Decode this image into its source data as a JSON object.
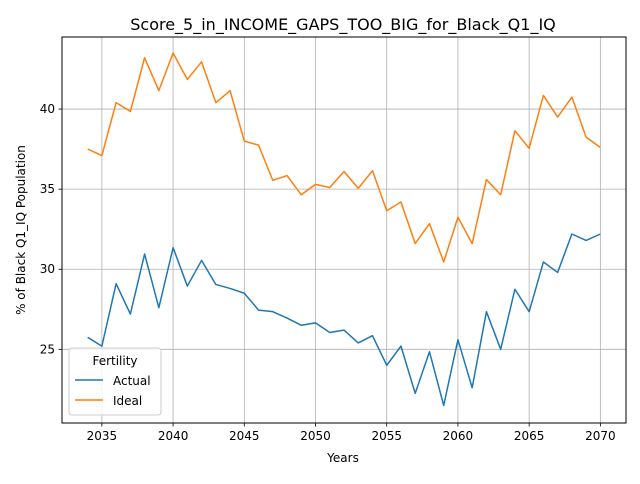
{
  "chart_data": {
    "type": "line",
    "title": "Score_5_in_INCOME_GAPS_TOO_BIG_for_Black_Q1_IQ",
    "xlabel": "Years",
    "ylabel": "% of Black Q1_IQ Population",
    "xlim": [
      2032.2,
      2071.8
    ],
    "ylim": [
      20.4,
      44.5
    ],
    "xticks": [
      2035,
      2040,
      2045,
      2050,
      2055,
      2060,
      2065,
      2070
    ],
    "yticks": [
      25,
      30,
      35,
      40
    ],
    "grid": true,
    "legend": {
      "title": "Fertility",
      "position": "lower-left"
    },
    "x": [
      2034,
      2035,
      2036,
      2037,
      2038,
      2039,
      2040,
      2041,
      2042,
      2043,
      2044,
      2045,
      2046,
      2047,
      2048,
      2049,
      2050,
      2051,
      2052,
      2053,
      2054,
      2055,
      2056,
      2057,
      2058,
      2059,
      2060,
      2061,
      2062,
      2063,
      2064,
      2065,
      2066,
      2067,
      2068,
      2069,
      2070
    ],
    "series": [
      {
        "name": "Actual",
        "color": "#1f77b4",
        "values": [
          25.75,
          25.2,
          29.1,
          27.2,
          30.95,
          27.6,
          31.35,
          28.95,
          30.55,
          29.05,
          28.8,
          28.5,
          27.45,
          27.35,
          26.95,
          26.5,
          26.65,
          26.05,
          26.2,
          25.4,
          25.85,
          24.0,
          25.2,
          22.25,
          24.85,
          21.5,
          25.6,
          22.6,
          27.35,
          25.0,
          28.75,
          27.35,
          30.45,
          29.8,
          32.2,
          31.8,
          32.2
        ]
      },
      {
        "name": "Ideal",
        "color": "#ff7f0e",
        "values": [
          37.5,
          37.1,
          40.4,
          39.85,
          43.2,
          41.15,
          43.5,
          41.85,
          42.95,
          40.4,
          41.15,
          38.0,
          37.75,
          35.55,
          35.85,
          34.65,
          35.3,
          35.1,
          36.1,
          35.05,
          36.15,
          33.65,
          34.2,
          31.6,
          32.85,
          30.45,
          33.25,
          31.6,
          35.6,
          34.65,
          38.65,
          37.55,
          40.85,
          39.5,
          40.75,
          38.25,
          37.6
        ]
      }
    ]
  }
}
